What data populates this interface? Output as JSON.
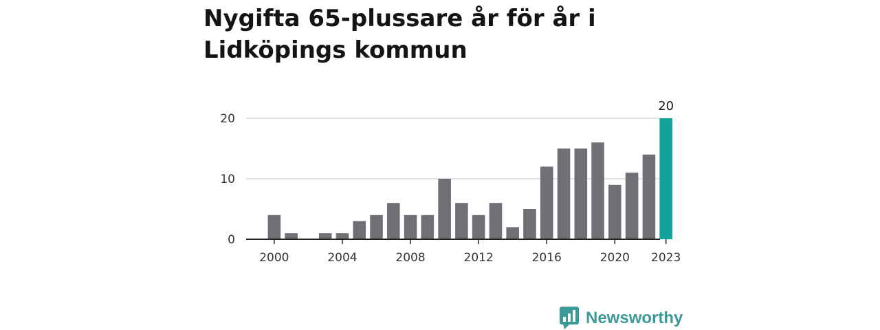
{
  "title": "Nygifta 65-plussare år för år i Lidköpings kommun",
  "brand": {
    "name": "Newsworthy",
    "color": "#3c9b98",
    "icon": "newsworthy-logo-icon"
  },
  "colors": {
    "bar": "#706f75",
    "highlight": "#12a39a",
    "grid": "#d9d9d9",
    "axis": "#222222"
  },
  "chart_data": {
    "type": "bar",
    "title": "Nygifta 65-plussare år för år i Lidköpings kommun",
    "xlabel": "",
    "ylabel": "",
    "categories": [
      2000,
      2001,
      2002,
      2003,
      2004,
      2005,
      2006,
      2007,
      2008,
      2009,
      2010,
      2011,
      2012,
      2013,
      2014,
      2015,
      2016,
      2017,
      2018,
      2019,
      2020,
      2021,
      2022,
      2023
    ],
    "values": [
      4,
      1,
      0,
      1,
      1,
      3,
      4,
      6,
      4,
      4,
      10,
      6,
      4,
      6,
      2,
      5,
      12,
      15,
      15,
      16,
      9,
      11,
      14,
      20
    ],
    "ylim": [
      0,
      20
    ],
    "yticks": [
      "0",
      "10",
      "20"
    ],
    "xticks": [
      "2000",
      "2004",
      "2008",
      "2012",
      "2016",
      "2020",
      "2023"
    ],
    "highlight_category": 2023,
    "highlight_label": "20",
    "grid": true,
    "legend": "none"
  }
}
